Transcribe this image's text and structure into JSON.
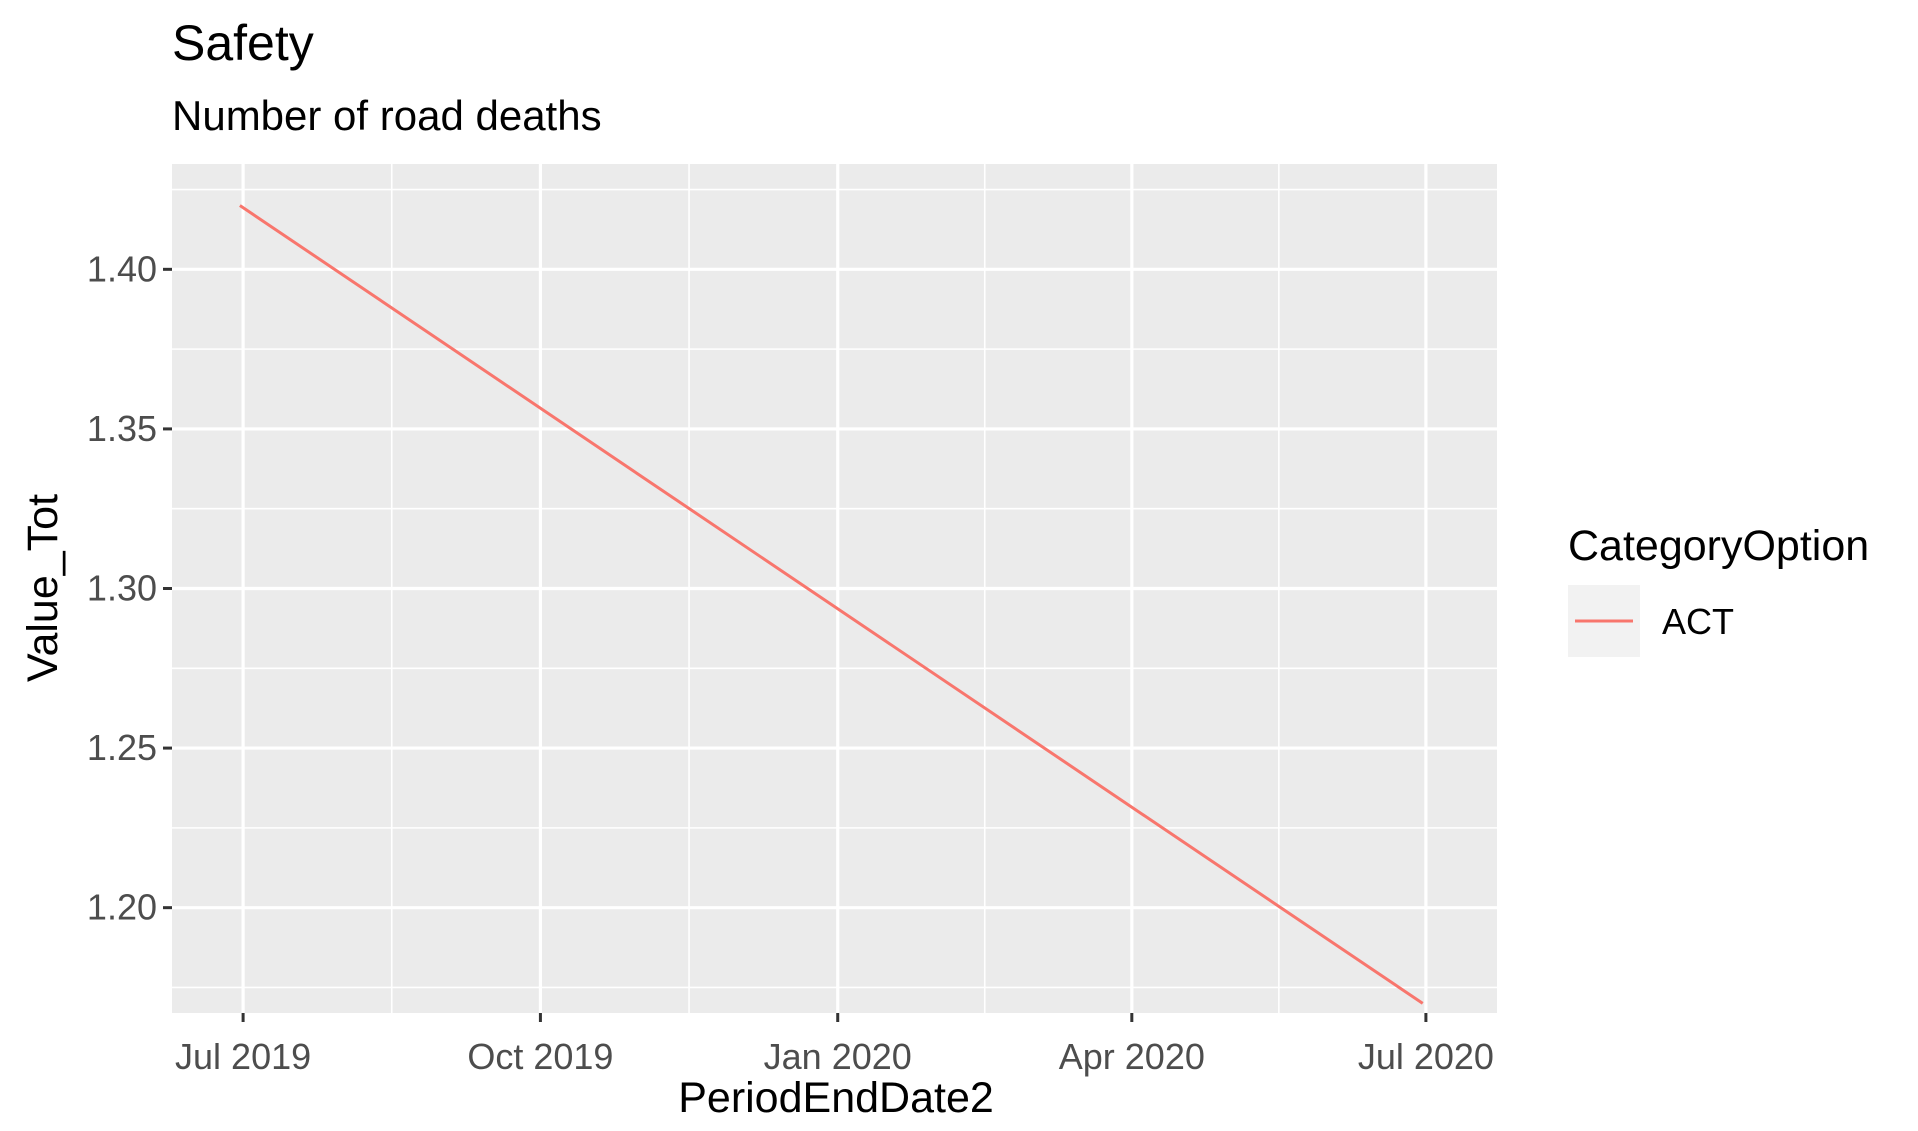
{
  "chart_data": {
    "type": "line",
    "title": "Safety",
    "subtitle": "Number of road deaths",
    "xlabel": "PeriodEndDate2",
    "ylabel": "Value_Tot",
    "x_ticks": [
      {
        "date": "2019-07-01",
        "label": "Jul 2019"
      },
      {
        "date": "2019-10-01",
        "label": "Oct 2019"
      },
      {
        "date": "2020-01-01",
        "label": "Jan 2020"
      },
      {
        "date": "2020-04-01",
        "label": "Apr 2020"
      },
      {
        "date": "2020-07-01",
        "label": "Jul 2020"
      }
    ],
    "y_ticks": [
      1.2,
      1.25,
      1.3,
      1.35,
      1.4
    ],
    "y_tick_labels": [
      "1.20",
      "1.25",
      "1.30",
      "1.35",
      "1.40"
    ],
    "ylim": [
      1.167,
      1.433
    ],
    "xlim": [
      "2019-06-09",
      "2020-07-23"
    ],
    "grid": true,
    "legend": {
      "title": "CategoryOption",
      "position": "right"
    },
    "series": [
      {
        "name": "ACT",
        "color": "#F8766D",
        "x": [
          "2019-06-30",
          "2020-06-30"
        ],
        "y": [
          1.42,
          1.17
        ]
      }
    ]
  }
}
